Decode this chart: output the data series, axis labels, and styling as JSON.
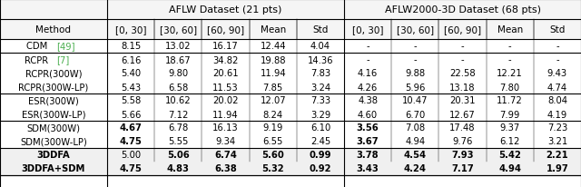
{
  "title_left": "AFLW Dataset (21 pts)",
  "title_right": "AFLW2000-3D Dataset (68 pts)",
  "col_headers": [
    "[0, 30]",
    "[30, 60]",
    "[60, 90]",
    "Mean",
    "Std",
    "[0, 30]",
    "[30, 60]",
    "[60, 90]",
    "Mean",
    "Std"
  ],
  "method_col": "Method",
  "rows": [
    {
      "method": "CDM [49]",
      "vals": [
        "8.15",
        "13.02",
        "16.17",
        "12.44",
        "4.04",
        "-",
        "-",
        "-",
        "-",
        "-"
      ],
      "bold_method": false,
      "bold_vals": [],
      "group_top": true
    },
    {
      "method": "RCPR [7]",
      "vals": [
        "-",
        "-",
        "-",
        "-",
        "-",
        "-",
        "-",
        "-",
        "-",
        "-"
      ],
      "bold_method": false,
      "bold_vals": [],
      "group_top": true
    },
    {
      "method": "RCPR(300W)",
      "vals": [
        "5.40",
        "9.80",
        "20.61",
        "11.94",
        "7.83",
        "4.16",
        "9.88",
        "22.58",
        "12.21",
        "9.43"
      ],
      "bold_method": false,
      "bold_vals": [],
      "group_top": false
    },
    {
      "method": "RCPR(300W-LP)",
      "vals": [
        "5.43",
        "6.58",
        "11.53",
        "7.85",
        "3.24",
        "4.26",
        "5.96",
        "13.18",
        "7.80",
        "4.74"
      ],
      "bold_method": false,
      "bold_vals": [],
      "group_top": false
    },
    {
      "method": "ESR(300W)",
      "vals": [
        "5.58",
        "10.62",
        "20.02",
        "12.07",
        "7.33",
        "4.38",
        "10.47",
        "20.31",
        "11.72",
        "8.04"
      ],
      "bold_method": false,
      "bold_vals": [],
      "group_top": true
    },
    {
      "method": "ESR(300W-LP)",
      "vals": [
        "5.66",
        "7.12",
        "11.94",
        "8.24",
        "3.29",
        "4.60",
        "6.70",
        "12.67",
        "7.99",
        "4.19"
      ],
      "bold_method": false,
      "bold_vals": [],
      "group_top": false
    },
    {
      "method": "SDM(300W)",
      "vals": [
        "4.67",
        "6.78",
        "16.13",
        "9.19",
        "6.10",
        "3.56",
        "7.08",
        "17.48",
        "9.37",
        "7.23"
      ],
      "bold_method": false,
      "bold_vals": [
        0
      ],
      "group_top": true
    },
    {
      "method": "SDM(300W-LP)",
      "vals": [
        "4.75",
        "5.55",
        "9.34",
        "6.55",
        "2.45",
        "3.67",
        "4.94",
        "9.76",
        "6.12",
        "3.21"
      ],
      "bold_method": false,
      "bold_vals": [
        0
      ],
      "group_top": false
    },
    {
      "method": "3DDFA",
      "vals": [
        "5.00",
        "5.06",
        "6.74",
        "5.60",
        "0.99",
        "3.78",
        "4.54",
        "7.93",
        "5.42",
        "2.21"
      ],
      "bold_method": true,
      "bold_vals": [
        1,
        2,
        3,
        4,
        6,
        7,
        8,
        9
      ],
      "group_top": true
    },
    {
      "method": "3DDFA+SDM",
      "vals": [
        "4.75",
        "4.83",
        "6.38",
        "5.32",
        "0.92",
        "3.43",
        "4.24",
        "7.17",
        "4.94",
        "1.97"
      ],
      "bold_method": true,
      "bold_vals": [
        1,
        2,
        3,
        4,
        5,
        6,
        7,
        8,
        9
      ],
      "group_top": false
    }
  ],
  "rcpr_first_vals": [
    "6.16",
    "18.67",
    "34.82",
    "19.88",
    "14.36"
  ],
  "cdm_ref_color": "#4CAF50",
  "rcpr_ref_color": "#4CAF50",
  "last_two_bold": true,
  "fig_width": 6.4,
  "fig_height": 2.07
}
